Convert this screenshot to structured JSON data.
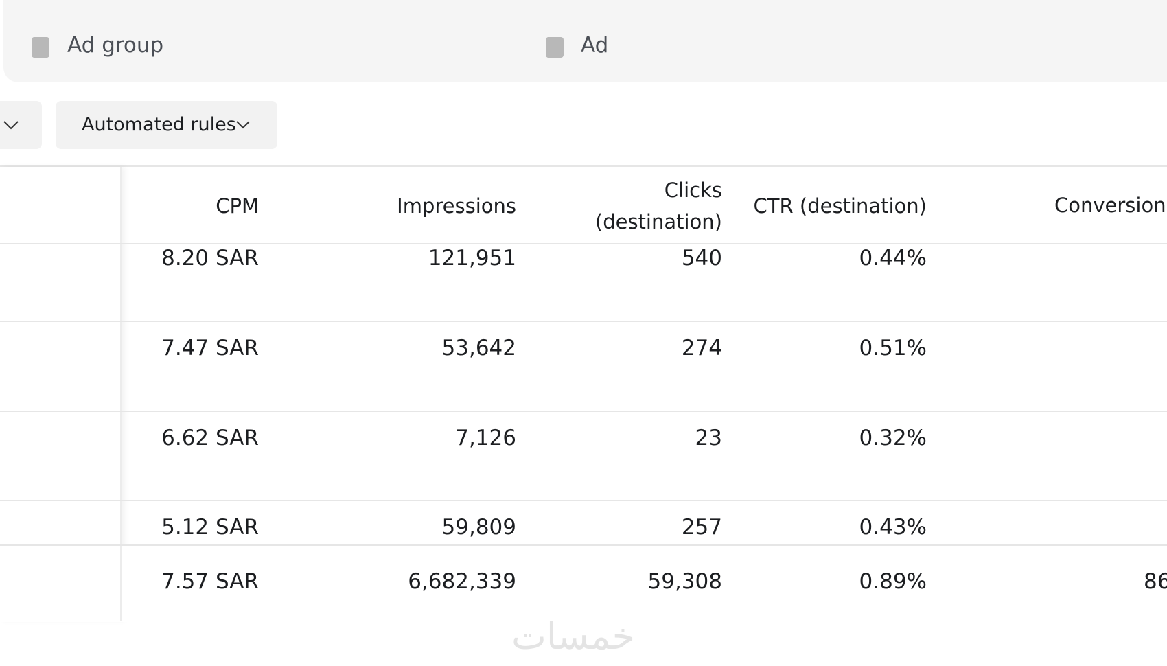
{
  "tabs": [
    "Ad group",
    "Ad"
  ],
  "toolbar": {
    "button": "Automated rules"
  },
  "table": {
    "columns": [
      "CPM",
      "Impressions",
      "Clicks (destination)",
      "CTR (destination)",
      "Conversion"
    ],
    "rows": [
      [
        "8.20 SAR",
        "121,951",
        "540",
        "0.44%"
      ],
      [
        "7.47 SAR",
        "53,642",
        "274",
        "0.51%"
      ],
      [
        "6.62 SAR",
        "7,126",
        "23",
        "0.32%"
      ],
      [
        "5.12 SAR",
        "59,809",
        "257",
        "0.43%"
      ]
    ],
    "total": [
      "7.57 SAR",
      "6,682,339",
      "59,308",
      "0.89%",
      "86"
    ]
  },
  "watermark": "خمسات"
}
